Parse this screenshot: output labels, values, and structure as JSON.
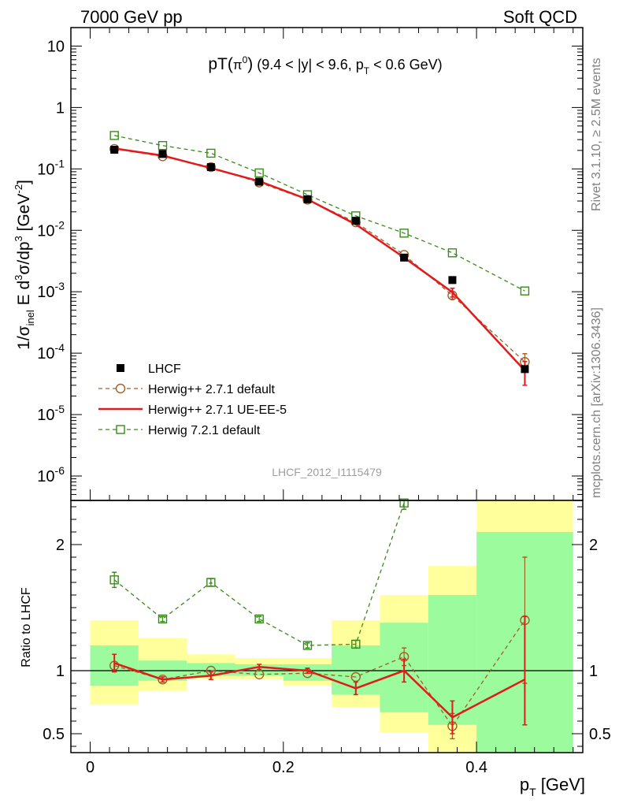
{
  "header": {
    "left": "7000 GeV pp",
    "right": "Soft QCD"
  },
  "side": {
    "rivet": "Rivet 3.1.10, ≥ 2.5M events",
    "mcplots": "mcplots.cern.ch [arXiv:1306.3436]"
  },
  "watermark": "LHCF_2012_I1115479",
  "chart_data": [
    {
      "type": "line",
      "panel": "main",
      "title": "pT(π⁰) (9.4 < |y| < 9.6, pT < 0.6 GeV)",
      "ylabel": "1/σinel E d³σ/dp³ [GeV⁻²]",
      "yscale": "log",
      "xlim": [
        -0.02,
        0.51
      ],
      "ylim": [
        4e-07,
        20
      ],
      "yticks": [
        {
          "value": 10,
          "label": "10"
        },
        {
          "value": 1,
          "label": "1"
        },
        {
          "value": 0.1,
          "label": "10⁻¹"
        },
        {
          "value": 0.01,
          "label": "10⁻²"
        },
        {
          "value": 0.001,
          "label": "10⁻³"
        },
        {
          "value": 0.0001,
          "label": "10⁻⁴"
        },
        {
          "value": 1e-05,
          "label": "10⁻⁵"
        },
        {
          "value": 1e-06,
          "label": "10⁻⁶"
        }
      ],
      "x": [
        0.025,
        0.075,
        0.125,
        0.175,
        0.225,
        0.275,
        0.325,
        0.375,
        0.45
      ],
      "legend_position": "bottom-left",
      "series": [
        {
          "name": "LHCF",
          "style": "data",
          "color": "#000000",
          "values": [
            0.205,
            0.175,
            0.107,
            0.062,
            0.032,
            0.0143,
            0.0036,
            0.00155,
            5.5e-05
          ]
        },
        {
          "name": "Herwig++ 2.7.1 default",
          "style": "circle-dashed",
          "color": "#a0602a",
          "values": [
            0.212,
            0.16,
            0.107,
            0.06,
            0.0315,
            0.0135,
            0.004,
            0.00087,
            7.2e-05
          ],
          "err_up": [
            0,
            0,
            0,
            0,
            0,
            0,
            0,
            0.00012,
            2.6e-05
          ],
          "err_dn": [
            0,
            0,
            0,
            0,
            0,
            0,
            0,
            0.00011,
            1.6e-05
          ]
        },
        {
          "name": "Herwig++ 2.7.1 UE-EE-5",
          "style": "solid",
          "color": "#e31a1c",
          "values": [
            0.215,
            0.165,
            0.103,
            0.063,
            0.032,
            0.0125,
            0.0036,
            0.00098,
            5.2e-05
          ],
          "err_up": [
            0,
            0,
            0,
            0,
            0,
            0,
            0,
            0.00016,
            2.1e-05
          ],
          "err_dn": [
            0,
            0,
            0,
            0,
            0,
            0,
            0,
            0.00016,
            2.2e-05
          ]
        },
        {
          "name": "Herwig 7.2.1 default",
          "style": "square-dashed",
          "color": "#3a8a1a",
          "values": [
            0.35,
            0.24,
            0.18,
            0.086,
            0.038,
            0.0172,
            0.009,
            0.0043,
            0.00103
          ]
        }
      ]
    },
    {
      "type": "line",
      "panel": "ratio",
      "ylabel": "Ratio to LHCF",
      "xlabel": "pT [GeV]",
      "ylim": [
        0.35,
        2.35
      ],
      "xlim": [
        -0.02,
        0.51
      ],
      "yticks": [
        0.5,
        1,
        2
      ],
      "xticks": [
        0,
        0.2,
        0.4
      ],
      "reference_line": 1,
      "bands": [
        {
          "x0": 0.0,
          "x1": 0.05,
          "green": [
            0.88,
            1.2
          ],
          "yellow": [
            0.73,
            1.4
          ]
        },
        {
          "x0": 0.05,
          "x1": 0.1,
          "green": [
            0.92,
            1.08
          ],
          "yellow": [
            0.84,
            1.26
          ]
        },
        {
          "x0": 0.1,
          "x1": 0.15,
          "green": [
            0.96,
            1.06
          ],
          "yellow": [
            0.93,
            1.13
          ]
        },
        {
          "x0": 0.15,
          "x1": 0.2,
          "green": [
            0.96,
            1.05
          ],
          "yellow": [
            0.93,
            1.1
          ]
        },
        {
          "x0": 0.2,
          "x1": 0.25,
          "green": [
            0.92,
            1.05
          ],
          "yellow": [
            0.88,
            1.1
          ]
        },
        {
          "x0": 0.25,
          "x1": 0.3,
          "green": [
            0.81,
            1.2
          ],
          "yellow": [
            0.71,
            1.4
          ]
        },
        {
          "x0": 0.3,
          "x1": 0.35,
          "green": [
            0.67,
            1.38
          ],
          "yellow": [
            0.51,
            1.6
          ]
        },
        {
          "x0": 0.35,
          "x1": 0.4,
          "green": [
            0.57,
            1.6
          ],
          "yellow": [
            0.35,
            1.83
          ]
        },
        {
          "x0": 0.4,
          "x1": 0.5,
          "green": [
            0.35,
            2.1
          ],
          "yellow": [
            0.35,
            2.35
          ]
        }
      ],
      "x": [
        0.025,
        0.075,
        0.125,
        0.175,
        0.225,
        0.275,
        0.325,
        0.375,
        0.45
      ],
      "series": [
        {
          "name": "Herwig++ 2.7.1 default",
          "style": "circle-dashed",
          "color": "#a0602a",
          "values": [
            1.04,
            0.93,
            1.0,
            0.97,
            0.98,
            0.95,
            1.11,
            0.56,
            1.4
          ],
          "err_up": [
            0,
            0,
            0,
            0,
            0,
            0,
            0.07,
            0.1,
            0.5
          ],
          "err_dn": [
            0,
            0,
            0,
            0,
            0,
            0,
            0.07,
            0.1,
            0.5
          ]
        },
        {
          "name": "Herwig++ 2.7.1 UE-EE-5",
          "style": "solid",
          "color": "#e31a1c",
          "values": [
            1.06,
            0.93,
            0.96,
            1.03,
            1.0,
            0.86,
            1.0,
            0.63,
            0.93
          ],
          "err_up": [
            0.07,
            0.02,
            0.03,
            0.02,
            0.02,
            0.05,
            0.09,
            0.13,
            0.5
          ],
          "err_dn": [
            0.07,
            0.02,
            0.03,
            0.02,
            0.02,
            0.05,
            0.09,
            0.13,
            0.36
          ]
        },
        {
          "name": "Herwig 7.2.1 default",
          "style": "square-dashed",
          "color": "#3a8a1a",
          "values": [
            1.72,
            1.41,
            1.7,
            1.41,
            1.2,
            1.21,
            2.33,
            null,
            null
          ],
          "err_up": [
            0.06,
            0.02,
            0.03,
            0.02,
            0.02,
            0.03,
            0.05,
            0,
            0
          ],
          "err_dn": [
            0.06,
            0.02,
            0.03,
            0.02,
            0.02,
            0.03,
            0.05,
            0,
            0
          ]
        }
      ]
    }
  ]
}
